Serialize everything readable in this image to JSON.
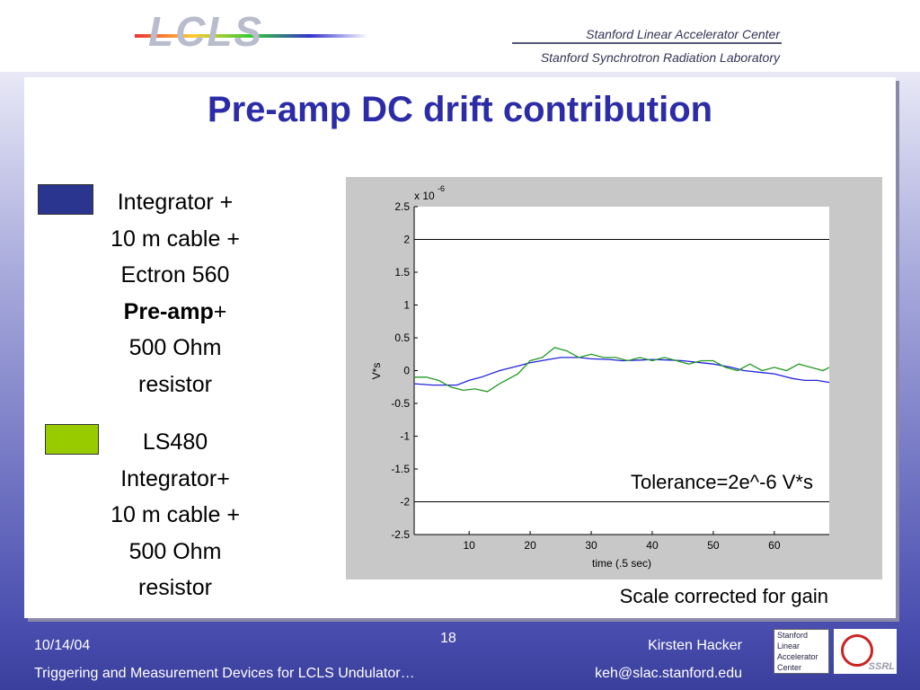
{
  "header": {
    "logo": "LCLS",
    "org_1": "Stanford Linear Accelerator Center",
    "org_2": "Stanford Synchrotron Radiation Laboratory"
  },
  "title": "Pre-amp DC drift contribution",
  "chart_data": {
    "type": "line",
    "axis_multiplier": {
      "base": "x 10",
      "exponent": "-6"
    },
    "xlabel": "time (.5 sec)",
    "ylabel": "V*s",
    "xlim": [
      1,
      69
    ],
    "ylim": [
      -2.5,
      2.5
    ],
    "xticks": [
      10,
      20,
      30,
      40,
      50,
      60
    ],
    "yticks": [
      2.5,
      2,
      1.5,
      1,
      0.5,
      0,
      -0.5,
      -1,
      -1.5,
      -2,
      -2.5
    ],
    "reference_lines": [
      2,
      -2
    ],
    "annotation": "Tolerance=2e^-6 V*s",
    "note": "Scale corrected for gain",
    "series": [
      {
        "name_lines": [
          "Integrator +",
          "10 m cable +",
          "Ectron 560",
          [
            "Pre-amp",
            "+"
          ],
          "500 Ohm",
          "resistor"
        ],
        "color": "#2222dd",
        "legend_color": "#2a3590",
        "x": [
          1,
          4,
          8,
          10,
          12,
          15,
          18,
          20,
          23,
          25,
          28,
          30,
          33,
          35,
          38,
          40,
          43,
          45,
          48,
          50,
          53,
          55,
          58,
          60,
          63,
          65,
          67,
          69
        ],
        "values": [
          -0.2,
          -0.22,
          -0.22,
          -0.15,
          -0.1,
          0.0,
          0.07,
          0.12,
          0.17,
          0.2,
          0.2,
          0.18,
          0.17,
          0.15,
          0.16,
          0.17,
          0.16,
          0.15,
          0.12,
          0.1,
          0.05,
          0.0,
          -0.03,
          -0.05,
          -0.12,
          -0.15,
          -0.15,
          -0.18
        ]
      },
      {
        "name_lines": [
          "LS480",
          "Integrator+",
          "10 m cable +",
          "500 Ohm",
          "resistor"
        ],
        "color": "#229922",
        "legend_color": "#99cc00",
        "x": [
          1,
          3,
          5,
          7,
          9,
          11,
          13,
          15,
          18,
          20,
          22,
          24,
          26,
          28,
          30,
          32,
          34,
          36,
          38,
          40,
          42,
          44,
          46,
          48,
          50,
          52,
          54,
          56,
          58,
          60,
          62,
          64,
          66,
          68,
          69
        ],
        "values": [
          -0.1,
          -0.1,
          -0.15,
          -0.25,
          -0.3,
          -0.28,
          -0.32,
          -0.2,
          -0.05,
          0.15,
          0.2,
          0.35,
          0.3,
          0.2,
          0.25,
          0.2,
          0.2,
          0.15,
          0.2,
          0.15,
          0.2,
          0.15,
          0.1,
          0.15,
          0.15,
          0.05,
          0.0,
          0.1,
          0.0,
          0.05,
          0.0,
          0.1,
          0.05,
          0.0,
          0.05
        ]
      }
    ]
  },
  "footer": {
    "date": "10/14/04",
    "page": "18",
    "author": "Kirsten Hacker",
    "talk": "Triggering and Measurement Devices for LCLS Undulator…",
    "email": "keh@slac.stanford.edu",
    "badge_lines": [
      "Stanford",
      "Linear",
      "Accelerator",
      "Center"
    ],
    "badge_mark": "SSRL"
  }
}
